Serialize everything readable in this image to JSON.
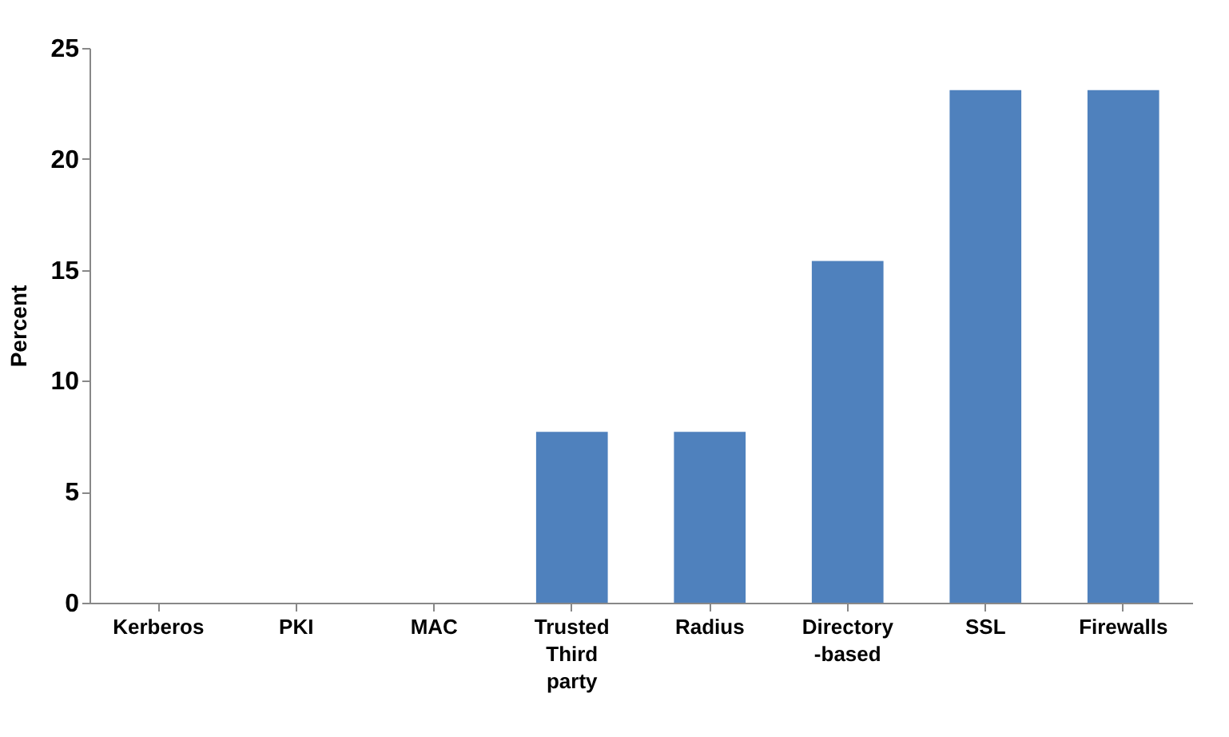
{
  "chart_data": {
    "type": "bar",
    "ylabel": "Percent",
    "categories": [
      "Kerberos",
      "PKI",
      "MAC",
      "Trusted Third party",
      "Radius",
      "Directory -based",
      "SSL",
      "Firewalls"
    ],
    "values": [
      0,
      0,
      0,
      7.7,
      7.7,
      15.4,
      23.1,
      23.1
    ],
    "color": "#4f81bd",
    "ylim": [
      0,
      25
    ],
    "yticks": [
      0,
      5,
      10,
      15,
      20,
      25
    ],
    "grid": false
  }
}
